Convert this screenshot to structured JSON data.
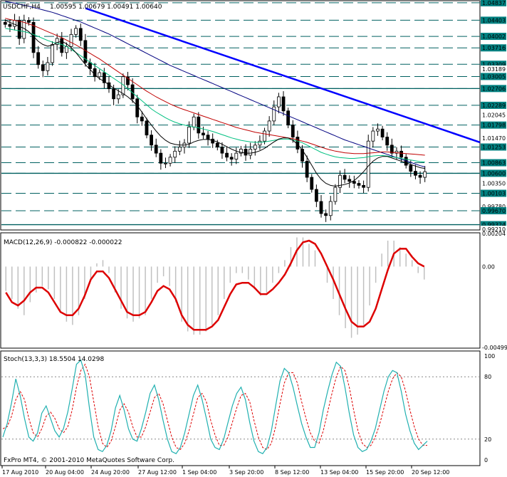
{
  "header": {
    "symbol_tf": "USDCHF,H4",
    "ohlc": "1.00595 1.00679 1.00491 1.00640"
  },
  "colors": {
    "bull": "#000000",
    "bear": "#000000",
    "ma_fast": "#000000",
    "ma_mid": "#00c080",
    "ma_slow": "#c00000",
    "ma_long": "#000080",
    "trendline": "#0000ff",
    "hlines": "#006060",
    "macd_hist": "#c0c0c0",
    "macd_signal": "#dd0000",
    "stoch_main": "#20b0b0",
    "stoch_signal": "#dd0000"
  },
  "chart_data": [
    {
      "type": "candlestick",
      "title": "USDCHF,H4",
      "ylim": [
        0.9921,
        1.0487
      ],
      "y_ticks": [
        "1.04837",
        "1.04403",
        "1.04002",
        "1.03716",
        "1.03309",
        "1.03189",
        "1.03005",
        "1.02706",
        "1.02289",
        "1.02045",
        "1.01798",
        "1.01470",
        "1.01253",
        "1.00863",
        "1.00600",
        "1.00350",
        "1.00103",
        "0.99780",
        "0.99670",
        "0.99324",
        "0.99210"
      ],
      "hlines": [
        1.04837,
        1.04403,
        1.04002,
        1.03716,
        1.03309,
        1.03005,
        1.02706,
        1.02289,
        1.01798,
        1.01253,
        1.00863,
        1.006,
        1.00103,
        0.9967,
        0.99324
      ],
      "trendline": [
        [
          0,
          1.047
        ],
        [
          120,
          1.0137
        ]
      ],
      "close": [
        1.043,
        1.0425,
        1.044,
        1.0395,
        1.044,
        1.0435,
        1.036,
        1.033,
        1.0315,
        1.0335,
        1.038,
        1.0395,
        1.036,
        1.0375,
        1.0405,
        1.042,
        1.039,
        1.0335,
        1.032,
        1.03,
        1.031,
        1.0285,
        1.027,
        1.0245,
        1.0255,
        1.03,
        1.028,
        1.0245,
        1.02,
        1.019,
        1.0155,
        1.013,
        1.011,
        1.0085,
        1.0085,
        1.01,
        1.0115,
        1.0125,
        1.0135,
        1.0175,
        1.02,
        1.016,
        1.0155,
        1.0145,
        1.0135,
        1.0125,
        1.011,
        1.01,
        1.0095,
        1.011,
        1.012,
        1.0105,
        1.012,
        1.013,
        1.014,
        1.0165,
        1.019,
        1.0225,
        1.025,
        1.0215,
        1.018,
        1.015,
        1.012,
        1.009,
        1.005,
        1.002,
        0.999,
        0.996,
        0.9955,
        0.999,
        1.0025,
        1.0055,
        1.0045,
        1.004,
        1.0035,
        1.003,
        1.0025,
        1.014,
        1.0165,
        1.017,
        1.015,
        1.013,
        1.011,
        1.0115,
        1.01,
        1.008,
        1.0065,
        1.0055,
        1.005,
        1.0064
      ],
      "ma_fast": [
        1.044,
        1.0435,
        1.043,
        1.0425,
        1.042,
        1.0412,
        1.04,
        1.0388,
        1.038,
        1.0376,
        1.0378,
        1.0385,
        1.0388,
        1.0382,
        1.0372,
        1.036,
        1.0345,
        1.033,
        1.0318,
        1.0305,
        1.0295,
        1.0288,
        1.028,
        1.0272,
        1.0265,
        1.0258,
        1.025,
        1.024,
        1.0228,
        1.0212,
        1.0195,
        1.018,
        1.0165,
        1.0152,
        1.0142,
        1.0135,
        1.0132,
        1.013,
        1.013,
        1.0132,
        1.0138,
        1.0142,
        1.0144,
        1.0144,
        1.0142,
        1.0138,
        1.0132,
        1.0126,
        1.012,
        1.0115,
        1.0112,
        1.011,
        1.011,
        1.0112,
        1.0116,
        1.0122,
        1.013,
        1.0138,
        1.0145,
        1.0148,
        1.0148,
        1.0142,
        1.0132,
        1.0118,
        1.01,
        1.008,
        1.006,
        1.0045,
        1.0035,
        1.003,
        1.0028,
        1.003,
        1.0032,
        1.0036,
        1.0042,
        1.0052,
        1.0064,
        1.0078,
        1.009,
        1.0098,
        1.0102,
        1.0102,
        1.0098,
        1.0094,
        1.009,
        1.0086,
        1.0082,
        1.0078,
        1.0074,
        1.0072
      ],
      "ma_mid": [
        1.042,
        1.0418,
        1.0416,
        1.0414,
        1.0412,
        1.0409,
        1.0405,
        1.04,
        1.0395,
        1.039,
        1.0386,
        1.0383,
        1.038,
        1.0375,
        1.0368,
        1.036,
        1.0352,
        1.0344,
        1.0336,
        1.0328,
        1.032,
        1.0312,
        1.0304,
        1.0296,
        1.0288,
        1.028,
        1.027,
        1.026,
        1.025,
        1.024,
        1.023,
        1.022,
        1.0212,
        1.0205,
        1.0198,
        1.0192,
        1.0187,
        1.0183,
        1.018,
        1.0177,
        1.0175,
        1.0173,
        1.017,
        1.0167,
        1.0164,
        1.016,
        1.0156,
        1.0152,
        1.0148,
        1.0145,
        1.0142,
        1.014,
        1.0138,
        1.0137,
        1.0137,
        1.0138,
        1.014,
        1.0142,
        1.0144,
        1.0145,
        1.0145,
        1.0143,
        1.014,
        1.0136,
        1.013,
        1.0124,
        1.0118,
        1.0112,
        1.0108,
        1.0104,
        1.0101,
        1.0099,
        1.0098,
        1.0097,
        1.0097,
        1.0098,
        1.0099,
        1.0101,
        1.0103,
        1.0104,
        1.0104,
        1.0103,
        1.0101,
        1.0099,
        1.0097,
        1.0095,
        1.0093,
        1.0091,
        1.0089,
        1.0088
      ],
      "ma_slow": [
        1.0445,
        1.0442,
        1.044,
        1.0438,
        1.0435,
        1.0431,
        1.0427,
        1.0422,
        1.0417,
        1.0412,
        1.0407,
        1.0402,
        1.0397,
        1.0391,
        1.0385,
        1.0379,
        1.0372,
        1.0365,
        1.0358,
        1.0351,
        1.0344,
        1.0336,
        1.0328,
        1.032,
        1.0312,
        1.0304,
        1.0296,
        1.0288,
        1.028,
        1.0272,
        1.0264,
        1.0257,
        1.025,
        1.0244,
        1.0238,
        1.0232,
        1.0227,
        1.0222,
        1.0218,
        1.0214,
        1.021,
        1.0206,
        1.0202,
        1.0198,
        1.0194,
        1.019,
        1.0186,
        1.0182,
        1.0178,
        1.0174,
        1.0171,
        1.0168,
        1.0165,
        1.0162,
        1.016,
        1.0158,
        1.0156,
        1.0154,
        1.0152,
        1.015,
        1.0148,
        1.0146,
        1.0143,
        1.014,
        1.0137,
        1.0133,
        1.0129,
        1.0125,
        1.0121,
        1.0118,
        1.0115,
        1.0113,
        1.0111,
        1.011,
        1.0109,
        1.0109,
        1.0109,
        1.011,
        1.0111,
        1.0112,
        1.0113,
        1.0113,
        1.0112,
        1.0111,
        1.011,
        1.0109,
        1.0108,
        1.0107,
        1.0106,
        1.0105
      ],
      "ma_long": [
        1.0487,
        1.0485,
        1.0483,
        1.048,
        1.0478,
        1.0475,
        1.0472,
        1.0469,
        1.0466,
        1.0463,
        1.046,
        1.0456,
        1.0452,
        1.0448,
        1.0444,
        1.044,
        1.0436,
        1.0431,
        1.0426,
        1.0421,
        1.0416,
        1.0411,
        1.0406,
        1.04,
        1.0394,
        1.0388,
        1.0382,
        1.0376,
        1.037,
        1.0364,
        1.0358,
        1.0352,
        1.0346,
        1.034,
        1.0334,
        1.0328,
        1.0323,
        1.0318,
        1.0313,
        1.0308,
        1.0303,
        1.0298,
        1.0293,
        1.0288,
        1.0283,
        1.0278,
        1.0273,
        1.0268,
        1.0263,
        1.0258,
        1.0253,
        1.0248,
        1.0243,
        1.0238,
        1.0233,
        1.0228,
        1.0223,
        1.0218,
        1.0213,
        1.0208,
        1.0203,
        1.0198,
        1.0193,
        1.0188,
        1.0183,
        1.0178,
        1.0173,
        1.0168,
        1.0163,
        1.0158,
        1.0153,
        1.0148,
        1.0143,
        1.0139,
        1.0135,
        1.0131,
        1.0127,
        1.0123,
        1.0119,
        1.0115,
        1.0111,
        1.0107,
        1.0103,
        1.0099,
        1.0095,
        1.0091,
        1.0087,
        1.0083,
        1.0079,
        1.0076
      ]
    },
    {
      "type": "line",
      "title": "MACD(12,26,9) -0.000822 -0.000022",
      "ylim": [
        -0.00499,
        0.00204
      ],
      "y_ticks": [
        "0.00204",
        "0.00",
        "-0.00499"
      ],
      "signal": [
        -0.0016,
        -0.0022,
        -0.0024,
        -0.0021,
        -0.0016,
        -0.0013,
        -0.0013,
        -0.0016,
        -0.0022,
        -0.0028,
        -0.003,
        -0.003,
        -0.0026,
        -0.0018,
        -0.0008,
        -0.0003,
        -0.0003,
        -0.0007,
        -0.0014,
        -0.0021,
        -0.0028,
        -0.003,
        -0.003,
        -0.0028,
        -0.0022,
        -0.0015,
        -0.0012,
        -0.0014,
        -0.002,
        -0.003,
        -0.0036,
        -0.0039,
        -0.0039,
        -0.0039,
        -0.0037,
        -0.0033,
        -0.0025,
        -0.0017,
        -0.0011,
        -0.001,
        -0.001,
        -0.0013,
        -0.0017,
        -0.0017,
        -0.0014,
        -0.001,
        -0.0005,
        0.0002,
        0.001,
        0.0015,
        0.0016,
        0.0014,
        0.0008,
        0.0,
        -0.0008,
        -0.0017,
        -0.0026,
        -0.0034,
        -0.0037,
        -0.0037,
        -0.0034,
        -0.0026,
        -0.0014,
        -0.0002,
        0.0008,
        0.0011,
        0.0011,
        0.0006,
        0.0002,
        0.0
      ],
      "histogram": [
        -0.0015,
        -0.002,
        -0.0026,
        -0.003,
        -0.0022,
        -0.0016,
        -0.0012,
        -0.0014,
        -0.002,
        -0.0028,
        -0.0034,
        -0.0036,
        -0.003,
        -0.002,
        -0.0008,
        0.0002,
        0.0004,
        -0.0004,
        -0.0016,
        -0.0026,
        -0.0032,
        -0.0034,
        -0.0032,
        -0.003,
        -0.002,
        -0.001,
        -0.0006,
        -0.0012,
        -0.0022,
        -0.0034,
        -0.004,
        -0.0042,
        -0.0042,
        -0.004,
        -0.0036,
        -0.003,
        -0.002,
        -0.001,
        -0.0004,
        -0.0004,
        -0.0008,
        -0.0014,
        -0.0018,
        -0.0016,
        -0.001,
        -0.0004,
        0.0004,
        0.0012,
        0.0018,
        0.0018,
        0.0014,
        0.001,
        0.0,
        -0.001,
        -0.002,
        -0.003,
        -0.0038,
        -0.0044,
        -0.0042,
        -0.0036,
        -0.0024,
        -0.001,
        0.0008,
        0.0016,
        0.0016,
        0.0012,
        0.0008,
        0.0004,
        -0.0004,
        -0.0008
      ]
    },
    {
      "type": "line",
      "title": "Stoch(13,3,3) 18.5504 14.0298",
      "ylim": [
        0,
        100
      ],
      "y_ticks": [
        "100",
        "80",
        "20",
        "0"
      ],
      "main": [
        22,
        35,
        55,
        78,
        62,
        40,
        22,
        18,
        26,
        45,
        52,
        40,
        28,
        22,
        30,
        46,
        68,
        92,
        96,
        82,
        50,
        22,
        10,
        8,
        14,
        28,
        50,
        62,
        48,
        30,
        20,
        18,
        30,
        46,
        64,
        72,
        58,
        38,
        20,
        8,
        6,
        12,
        26,
        44,
        62,
        72,
        58,
        40,
        20,
        12,
        10,
        20,
        36,
        52,
        64,
        70,
        58,
        36,
        18,
        8,
        6,
        12,
        28,
        52,
        76,
        88,
        84,
        70,
        52,
        35,
        22,
        12,
        12,
        26,
        48,
        66,
        82,
        94,
        90,
        70,
        45,
        24,
        12,
        8,
        10,
        18,
        30,
        48,
        66,
        80,
        86,
        84,
        66,
        44,
        28,
        16,
        10,
        14,
        18
      ],
      "signal": [
        30,
        32,
        42,
        58,
        66,
        58,
        40,
        26,
        22,
        30,
        42,
        46,
        40,
        30,
        26,
        32,
        48,
        70,
        86,
        92,
        80,
        56,
        32,
        16,
        12,
        18,
        32,
        48,
        54,
        46,
        32,
        22,
        22,
        32,
        46,
        60,
        64,
        54,
        38,
        22,
        12,
        10,
        16,
        28,
        44,
        60,
        64,
        56,
        38,
        24,
        14,
        14,
        22,
        36,
        50,
        62,
        64,
        56,
        38,
        22,
        12,
        10,
        16,
        32,
        54,
        74,
        84,
        84,
        74,
        56,
        40,
        26,
        18,
        16,
        28,
        46,
        64,
        80,
        90,
        86,
        70,
        48,
        28,
        16,
        12,
        14,
        22,
        34,
        50,
        66,
        78,
        84,
        80,
        66,
        48,
        32,
        20,
        14,
        14
      ]
    }
  ],
  "x_labels": [
    "17 Aug 2010",
    "20 Aug 04:00",
    "24 Aug 20:00",
    "27 Aug 12:00",
    "1 Sep 04:00",
    "3 Sep 20:00",
    "8 Sep 12:00",
    "13 Sep 04:00",
    "15 Sep 20:00",
    "20 Sep 12:00"
  ],
  "footer": "FxPro MT4, © 2001-2010 MetaQuotes Software Corp."
}
